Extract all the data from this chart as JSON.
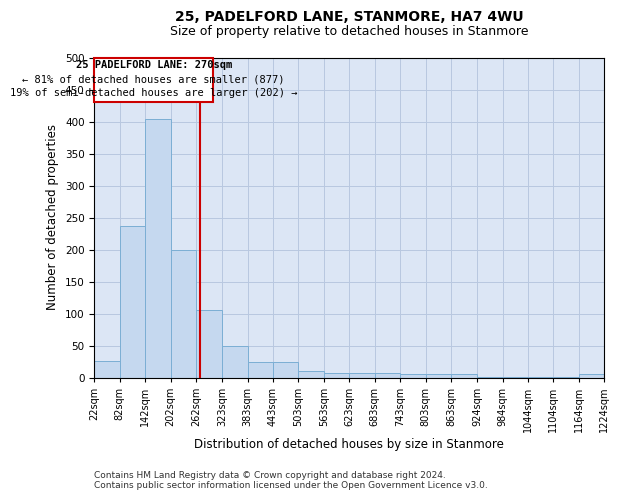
{
  "title": "25, PADELFORD LANE, STANMORE, HA7 4WU",
  "subtitle": "Size of property relative to detached houses in Stanmore",
  "xlabel": "Distribution of detached houses by size in Stanmore",
  "ylabel": "Number of detached properties",
  "bar_color": "#c5d8ef",
  "bar_edge_color": "#7baed4",
  "background_color": "#ffffff",
  "plot_bg_color": "#dce6f5",
  "grid_color": "#b8c8e0",
  "annotation_box_color": "#cc0000",
  "vline_color": "#cc0000",
  "bin_edges": [
    22,
    82,
    142,
    202,
    262,
    323,
    383,
    443,
    503,
    563,
    623,
    683,
    743,
    803,
    863,
    924,
    984,
    1044,
    1104,
    1164,
    1224
  ],
  "bar_heights": [
    26,
    237,
    404,
    200,
    105,
    49,
    24,
    24,
    10,
    7,
    7,
    7,
    5,
    5,
    5,
    1,
    1,
    1,
    1,
    5
  ],
  "tick_labels": [
    "22sqm",
    "82sqm",
    "142sqm",
    "202sqm",
    "262sqm",
    "323sqm",
    "383sqm",
    "443sqm",
    "503sqm",
    "563sqm",
    "623sqm",
    "683sqm",
    "743sqm",
    "803sqm",
    "863sqm",
    "924sqm",
    "984sqm",
    "1044sqm",
    "1104sqm",
    "1164sqm",
    "1224sqm"
  ],
  "vline_x": 270,
  "annotation_text_line1": "25 PADELFORD LANE: 270sqm",
  "annotation_text_line2": "← 81% of detached houses are smaller (877)",
  "annotation_text_line3": "19% of semi-detached houses are larger (202) →",
  "footer_line1": "Contains HM Land Registry data © Crown copyright and database right 2024.",
  "footer_line2": "Contains public sector information licensed under the Open Government Licence v3.0.",
  "ylim": [
    0,
    500
  ],
  "yticks": [
    0,
    50,
    100,
    150,
    200,
    250,
    300,
    350,
    400,
    450,
    500
  ],
  "title_fontsize": 10,
  "subtitle_fontsize": 9,
  "axis_label_fontsize": 8.5,
  "tick_fontsize": 7,
  "footer_fontsize": 6.5,
  "ann_fontsize": 7.5
}
